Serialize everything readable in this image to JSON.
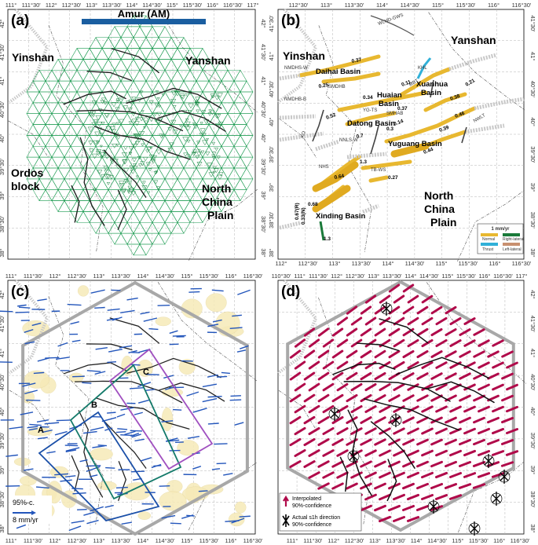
{
  "colors": {
    "grid": "#1a9a50",
    "fault_dark": "#222222",
    "basin_fill": "#e8b830",
    "hexagon": "#a8a8a8",
    "arrow_magenta": "#b00a4a",
    "arrow_blue": "#2255bb",
    "profile_a": "#1a4fa8",
    "profile_b": "#147a6a",
    "profile_c": "#a050c0",
    "amur_bar": "#1a5ea0",
    "ellipse_fill": "#f6eab8"
  },
  "panel_a": {
    "label": "(a)",
    "top_ticks": [
      "111°",
      "111°30'",
      "112°",
      "112°30'",
      "113°",
      "113°30'",
      "114°",
      "114°30'",
      "115°",
      "115°30'",
      "116°",
      "116°30'",
      "117°"
    ],
    "right_ticks": [
      "42°",
      "41°30'",
      "41°",
      "40°30'",
      "40°",
      "39°30'",
      "39°",
      "38°30'",
      "38°"
    ],
    "left_ticks": [
      "42°",
      "41°30'",
      "41°",
      "40°30'",
      "40°",
      "39°30'",
      "39°",
      "38°30'",
      "38°"
    ],
    "amur_label": "Amur (AM)",
    "regions": [
      "Yinshan",
      "Yanshan",
      "Ordos",
      "block",
      "North",
      "China",
      "Plain"
    ]
  },
  "panel_b": {
    "label": "(b)",
    "top_ticks": [
      "112°30'",
      "113°",
      "113°30'",
      "114°",
      "114°30'",
      "115°",
      "115°30'",
      "116°",
      "116°30'"
    ],
    "bottom_ticks": [
      "112°",
      "112°30'",
      "113°",
      "113°30'",
      "114°",
      "114°30'",
      "115°",
      "115°30'",
      "116°",
      "116°30'"
    ],
    "right_ticks": [
      "41°30'",
      "41°",
      "40°30'",
      "40°",
      "39°30'",
      "39°",
      "38°30'",
      "38°"
    ],
    "left_ticks": [
      "41°30'",
      "41°",
      "40°30'",
      "40°",
      "39°30'",
      "39°",
      "38°30'",
      "38°"
    ],
    "regions": [
      "Yinshan",
      "Yanshan",
      "North",
      "China",
      "Plain"
    ],
    "basins": [
      "Daihai Basin",
      "Huaian",
      "Basin",
      "Xuanhua",
      "Basin",
      "Datong Basin",
      "Yuguang Basin",
      "Xinding Basin"
    ],
    "fault_names": [
      "WLHD-GWS",
      "NMDHS-W",
      "SMDHB",
      "NMDHB-B",
      "KHL",
      "MBT",
      "NHS",
      "TB-WS",
      "NNLS-W",
      "KO",
      "YG-TS",
      "SMHAB",
      "NWLT"
    ],
    "rates": [
      "0.37",
      "0.25",
      "0.11",
      "0.34",
      "0.37",
      "0.52",
      "0.7",
      "0.3",
      "0.14",
      "0.38",
      "0.46",
      "0.39",
      "0.44",
      "0.21",
      "1.3",
      "0.27",
      "0.64",
      "0.67(R)",
      "0.33(N)",
      "0.68",
      "1.3"
    ],
    "legend": {
      "title": "1 mm/yr",
      "items": [
        "Normal",
        "Right-lateral",
        "Thrust",
        "Left-lateral"
      ]
    }
  },
  "panel_c": {
    "label": "(c)",
    "top_ticks": [
      "111°",
      "111°30'",
      "112°",
      "112°30'",
      "113°",
      "113°30'",
      "114°",
      "114°30'",
      "115°",
      "115°30'",
      "116°",
      "116°30'"
    ],
    "bottom_ticks": [
      "111°",
      "111°30'",
      "112°",
      "112°30'",
      "113°",
      "113°30'",
      "114°",
      "114°30'",
      "115°",
      "115°30'",
      "116°",
      "116°30'"
    ],
    "left_ticks": [
      "42°",
      "41°30'",
      "41°",
      "40°30'",
      "40°",
      "39°30'",
      "39°",
      "38°30'",
      "38°"
    ],
    "profiles": [
      "A",
      "B",
      "C"
    ],
    "scale_label": "95%-c.",
    "scale_value": "8 mm/yr"
  },
  "panel_d": {
    "label": "(d)",
    "top_ticks": [
      "110°30'",
      "111°",
      "111°30'",
      "112°",
      "112°30'",
      "113°",
      "113°30'",
      "114°",
      "114°30'",
      "115°",
      "115°30'",
      "116°",
      "116°30'",
      "117°"
    ],
    "bottom_ticks": [
      "111°",
      "111°30'",
      "112°",
      "112°30'",
      "113°",
      "113°30'",
      "114°",
      "114°30'",
      "115°",
      "115°30'",
      "116°",
      "116°30'"
    ],
    "right_ticks": [
      "42°",
      "41°30'",
      "41°",
      "40°30'",
      "40°",
      "39°30'",
      "39°",
      "38°30'",
      "38°"
    ],
    "legend": {
      "interp_title": "Interpolated",
      "interp_conf": "90%-confidence",
      "actual_title": "Actual s1h direction",
      "actual_conf": "90%-confidence"
    }
  }
}
